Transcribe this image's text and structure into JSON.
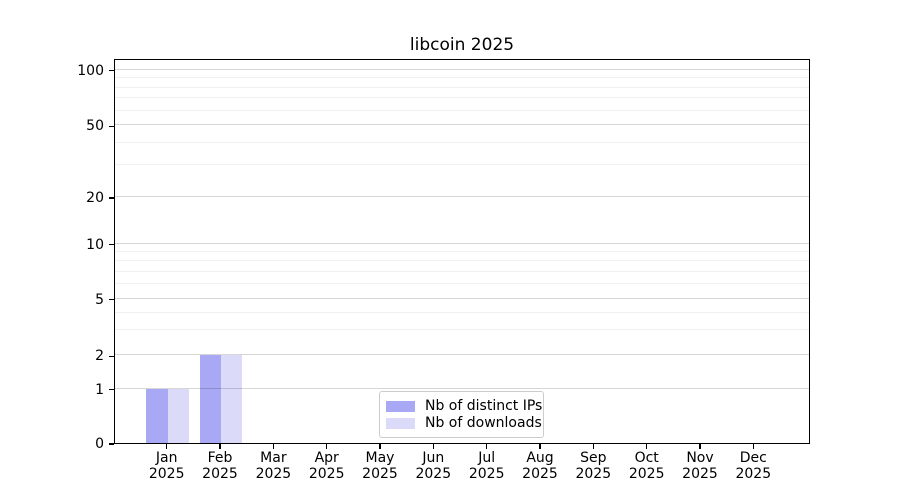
{
  "figure": {
    "background": "#ffffff"
  },
  "chart_data": {
    "type": "bar",
    "title": "libcoin 2025",
    "x_months": [
      "Jan",
      "Feb",
      "Mar",
      "Apr",
      "May",
      "Jun",
      "Jul",
      "Aug",
      "Sep",
      "Oct",
      "Nov",
      "Dec"
    ],
    "x_year": "2025",
    "x_categories": [
      "Jan 2025",
      "Feb 2025",
      "Mar 2025",
      "Apr 2025",
      "May 2025",
      "Jun 2025",
      "Jul 2025",
      "Aug 2025",
      "Sep 2025",
      "Oct 2025",
      "Nov 2025",
      "Dec 2025"
    ],
    "series": [
      {
        "name": "Nb of distinct IPs",
        "color": "#a8a8f4",
        "values": [
          1,
          2,
          0,
          0,
          0,
          0,
          0,
          0,
          0,
          0,
          0,
          0
        ]
      },
      {
        "name": "Nb of downloads",
        "color": "#dbdbf9",
        "values": [
          1,
          2,
          0,
          0,
          0,
          0,
          0,
          0,
          0,
          0,
          0,
          0
        ]
      }
    ],
    "y_scale": "symlog",
    "ylim": [
      0,
      115
    ],
    "y_ticks": [
      0,
      1,
      2,
      5,
      10,
      20,
      50,
      100
    ],
    "y_minor_ticks": [
      3,
      4,
      6,
      7,
      8,
      9,
      30,
      40,
      60,
      70,
      80,
      90
    ],
    "grid": true,
    "grid_major_color": "#d7d7d7",
    "grid_minor_color": "#efefef",
    "legend_position": "lower center",
    "xlabel": "",
    "ylabel": ""
  }
}
